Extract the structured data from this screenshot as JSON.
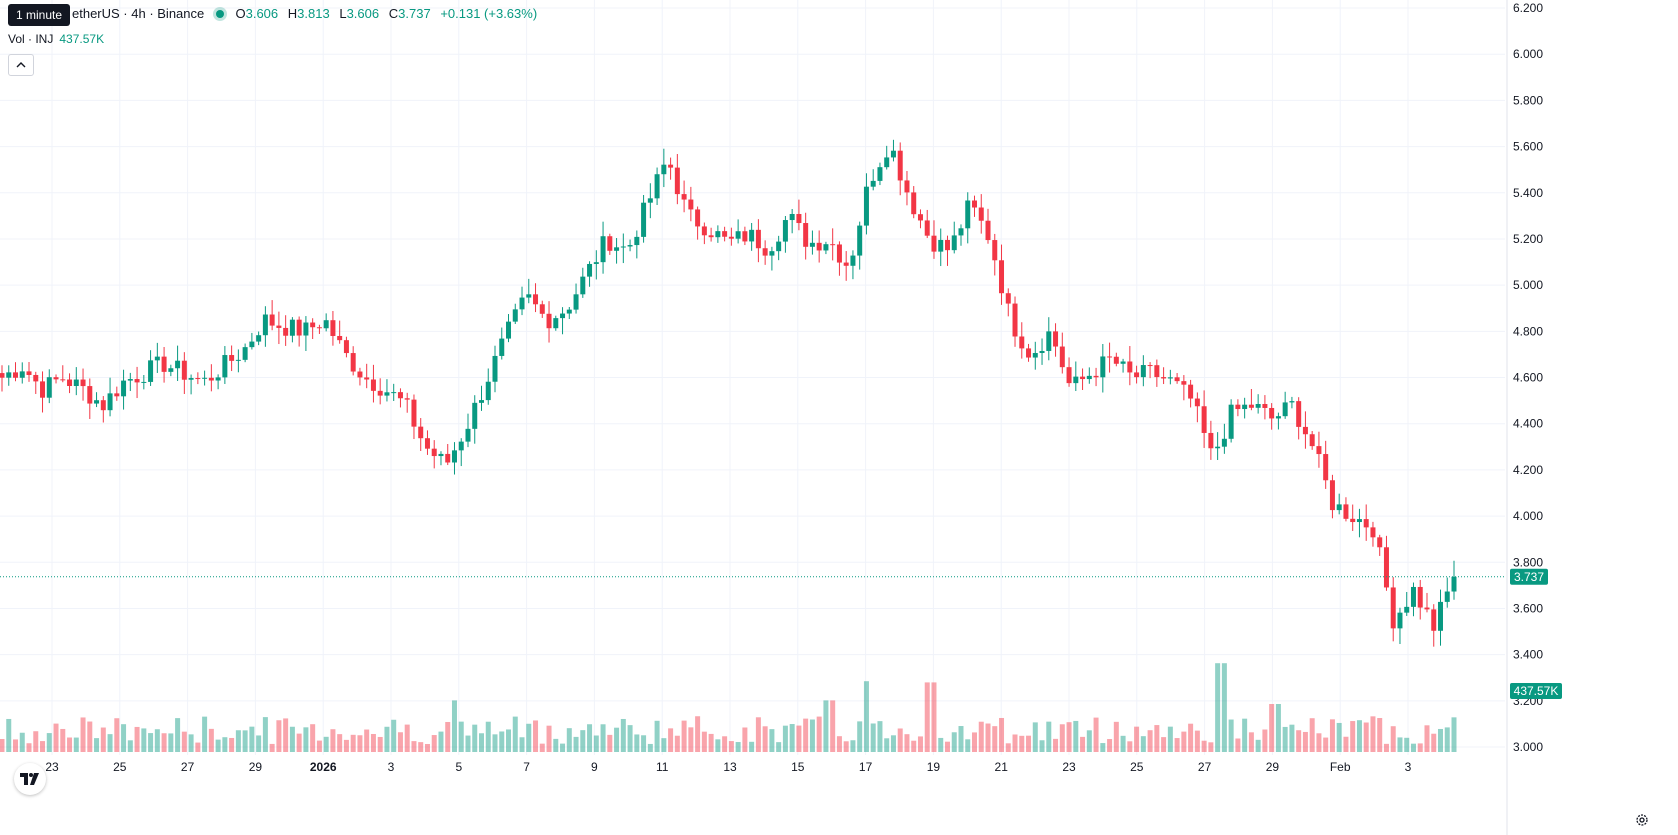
{
  "header": {
    "tooltip": "1 minute",
    "symbol": "etherUS · 4h · Binance",
    "ohlc": [
      {
        "k": "O",
        "v": "3.606"
      },
      {
        "k": "H",
        "v": "3.813"
      },
      {
        "k": "L",
        "v": "3.606"
      },
      {
        "k": "C",
        "v": "3.737"
      }
    ],
    "change": "+0.131 (+3.63%)"
  },
  "volume_legend": {
    "label": "Vol · INJ",
    "value": "437.57K"
  },
  "colors": {
    "up": "#089981",
    "down": "#f23645",
    "grid": "#f0f3fa",
    "text": "#131722"
  },
  "icons": {
    "collapse": "chevron-up-icon",
    "logo": "tradingview-logo-icon",
    "settings": "gear-icon"
  },
  "chart_data": {
    "type": "candlestick",
    "y_ticks": [
      "6.200",
      "6.000",
      "5.800",
      "5.600",
      "5.400",
      "5.200",
      "5.000",
      "4.800",
      "4.600",
      "4.400",
      "4.200",
      "4.000",
      "3.800",
      "3.600",
      "3.400",
      "3.200",
      "3.000"
    ],
    "ylim": [
      3.0,
      6.2
    ],
    "x_ticks": [
      "23",
      "25",
      "27",
      "29",
      "2026",
      "3",
      "5",
      "7",
      "9",
      "11",
      "13",
      "15",
      "17",
      "19",
      "21",
      "23",
      "25",
      "27",
      "29",
      "Feb",
      "3"
    ],
    "last_price": "3.737",
    "last_volume": "437.57K",
    "grid": true,
    "anchors": [
      4.6,
      4.65,
      4.55,
      4.6,
      4.55,
      4.48,
      4.58,
      4.62,
      4.66,
      4.62,
      4.58,
      4.65,
      4.72,
      4.85,
      4.82,
      4.8,
      4.85,
      4.7,
      4.6,
      4.55,
      4.48,
      4.3,
      4.22,
      4.38,
      4.58,
      4.78,
      4.95,
      4.85,
      4.9,
      5.05,
      5.2,
      5.15,
      5.35,
      5.55,
      5.3,
      5.25,
      5.18,
      5.22,
      5.16,
      5.3,
      5.18,
      5.2,
      5.08,
      5.45,
      5.62,
      5.38,
      5.2,
      5.15,
      5.35,
      5.2,
      4.85,
      4.7,
      4.8,
      4.55,
      4.62,
      4.68,
      4.6,
      4.62,
      4.58,
      4.5,
      4.25,
      4.45,
      4.48,
      4.42,
      4.48,
      4.3,
      4.05,
      4.0,
      3.95,
      3.55,
      3.68,
      3.52,
      3.737
    ],
    "volume_spikes": {
      "bar": "1.31",
      "bars": [
        [
          0.31,
          0.43
        ],
        [
          0.57,
          0.43
        ],
        [
          0.595,
          0.59
        ],
        [
          0.64,
          0.58
        ],
        [
          0.84,
          0.74
        ],
        [
          0.877,
          0.4
        ]
      ]
    }
  }
}
